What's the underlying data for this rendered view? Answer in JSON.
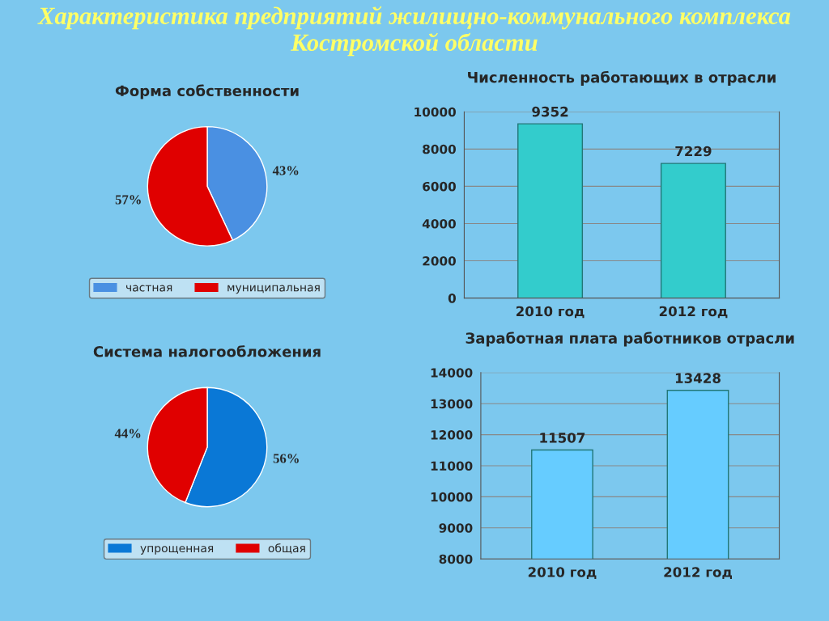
{
  "chart_data": [
    {
      "type": "other",
      "title": "Характеристика предприятий жилищно-коммунального комплекса Костромской области"
    },
    {
      "type": "pie",
      "title": "Форма собственности",
      "categories": [
        "частная",
        "муниципальная"
      ],
      "values": [
        43,
        57
      ],
      "colors": [
        "#4a90e2",
        "#e00000"
      ],
      "value_labels": [
        "43%",
        "57%"
      ],
      "legend": "bottom"
    },
    {
      "type": "bar",
      "title": "Численность работающих в отрасли",
      "categories": [
        "2010 год",
        "2012 год"
      ],
      "values": [
        9352,
        7229
      ],
      "color": "#33cccc",
      "ylim": [
        0,
        10000
      ],
      "yticks": [
        0,
        2000,
        4000,
        6000,
        8000,
        10000
      ],
      "grid": "y",
      "data_labels": true
    },
    {
      "type": "pie",
      "title": "Система налогообложения",
      "categories": [
        "упрощенная",
        "общая"
      ],
      "values": [
        56,
        44
      ],
      "colors": [
        "#0a78d6",
        "#e00000"
      ],
      "value_labels": [
        "56%",
        "44%"
      ],
      "legend": "bottom"
    },
    {
      "type": "bar",
      "title": "Заработная плата работников отрасли",
      "categories": [
        "2010 год",
        "2012 год"
      ],
      "values": [
        11507,
        13428
      ],
      "color": "#66ccff",
      "ylim": [
        8000,
        14000
      ],
      "yticks": [
        8000,
        9000,
        10000,
        11000,
        12000,
        13000,
        14000
      ],
      "grid": "y",
      "data_labels": true
    }
  ]
}
